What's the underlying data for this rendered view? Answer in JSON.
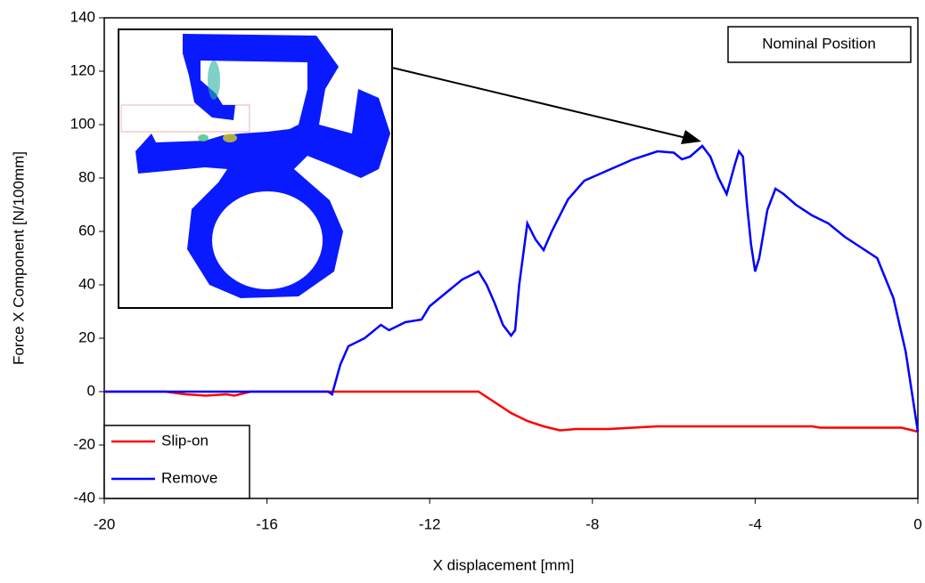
{
  "chart_data": {
    "type": "line",
    "xlabel": "X displacement [mm]",
    "ylabel": "Force X Component [N/100mm]",
    "annotation": "Nominal Position",
    "xlim": [
      -20,
      0
    ],
    "xticks": [
      -20,
      -16,
      -12,
      -8,
      -4,
      0
    ],
    "ylim": [
      -40,
      140
    ],
    "yticks": [
      -40,
      -20,
      0,
      20,
      40,
      60,
      80,
      100,
      120,
      140
    ],
    "legend": "lower left",
    "series": [
      {
        "name": "Slip-on",
        "color": "#ff0000",
        "x": [
          -20,
          -18.5,
          -18,
          -17.5,
          -17,
          -16.8,
          -16.4,
          -10.8,
          -10.4,
          -10,
          -9.6,
          -9.2,
          -8.8,
          -8.4,
          -7.6,
          -7,
          -6.4,
          -4,
          -2.6,
          -2.4,
          -0.4,
          0
        ],
        "values": [
          0,
          0,
          -1,
          -1.5,
          -1,
          -1.5,
          0,
          0,
          -4,
          -8,
          -11,
          -13,
          -14.5,
          -14,
          -14,
          -13.5,
          -13,
          -13,
          -13,
          -13.5,
          -13.5,
          -15
        ]
      },
      {
        "name": "Remove",
        "color": "#0000ff",
        "x": [
          -20,
          -14.5,
          -14.4,
          -14.2,
          -14,
          -13.6,
          -13.2,
          -13,
          -12.6,
          -12.2,
          -12,
          -11.6,
          -11.2,
          -10.8,
          -10.6,
          -10.4,
          -10.2,
          -10,
          -9.9,
          -9.8,
          -9.6,
          -9.4,
          -9.2,
          -9,
          -8.6,
          -8.2,
          -7.6,
          -7,
          -6.4,
          -6,
          -5.8,
          -5.6,
          -5.3,
          -5.1,
          -4.9,
          -4.7,
          -4.5,
          -4.4,
          -4.3,
          -4.2,
          -4.1,
          -4,
          -3.9,
          -3.7,
          -3.5,
          -3.3,
          -3,
          -2.6,
          -2.2,
          -1.8,
          -1.4,
          -1,
          -0.6,
          -0.3,
          0
        ],
        "values": [
          0,
          0,
          -1,
          10,
          17,
          20,
          25,
          23,
          26,
          27,
          32,
          37,
          42,
          45,
          40,
          33,
          25,
          21,
          23,
          40,
          63,
          57,
          53,
          60,
          72,
          79,
          83,
          87,
          90,
          89.5,
          87,
          88,
          92,
          88,
          80,
          74,
          85,
          90,
          88,
          70,
          55,
          45,
          50,
          68,
          76,
          74,
          70,
          66,
          63,
          58,
          54,
          50,
          35,
          15,
          -15
        ]
      }
    ]
  }
}
